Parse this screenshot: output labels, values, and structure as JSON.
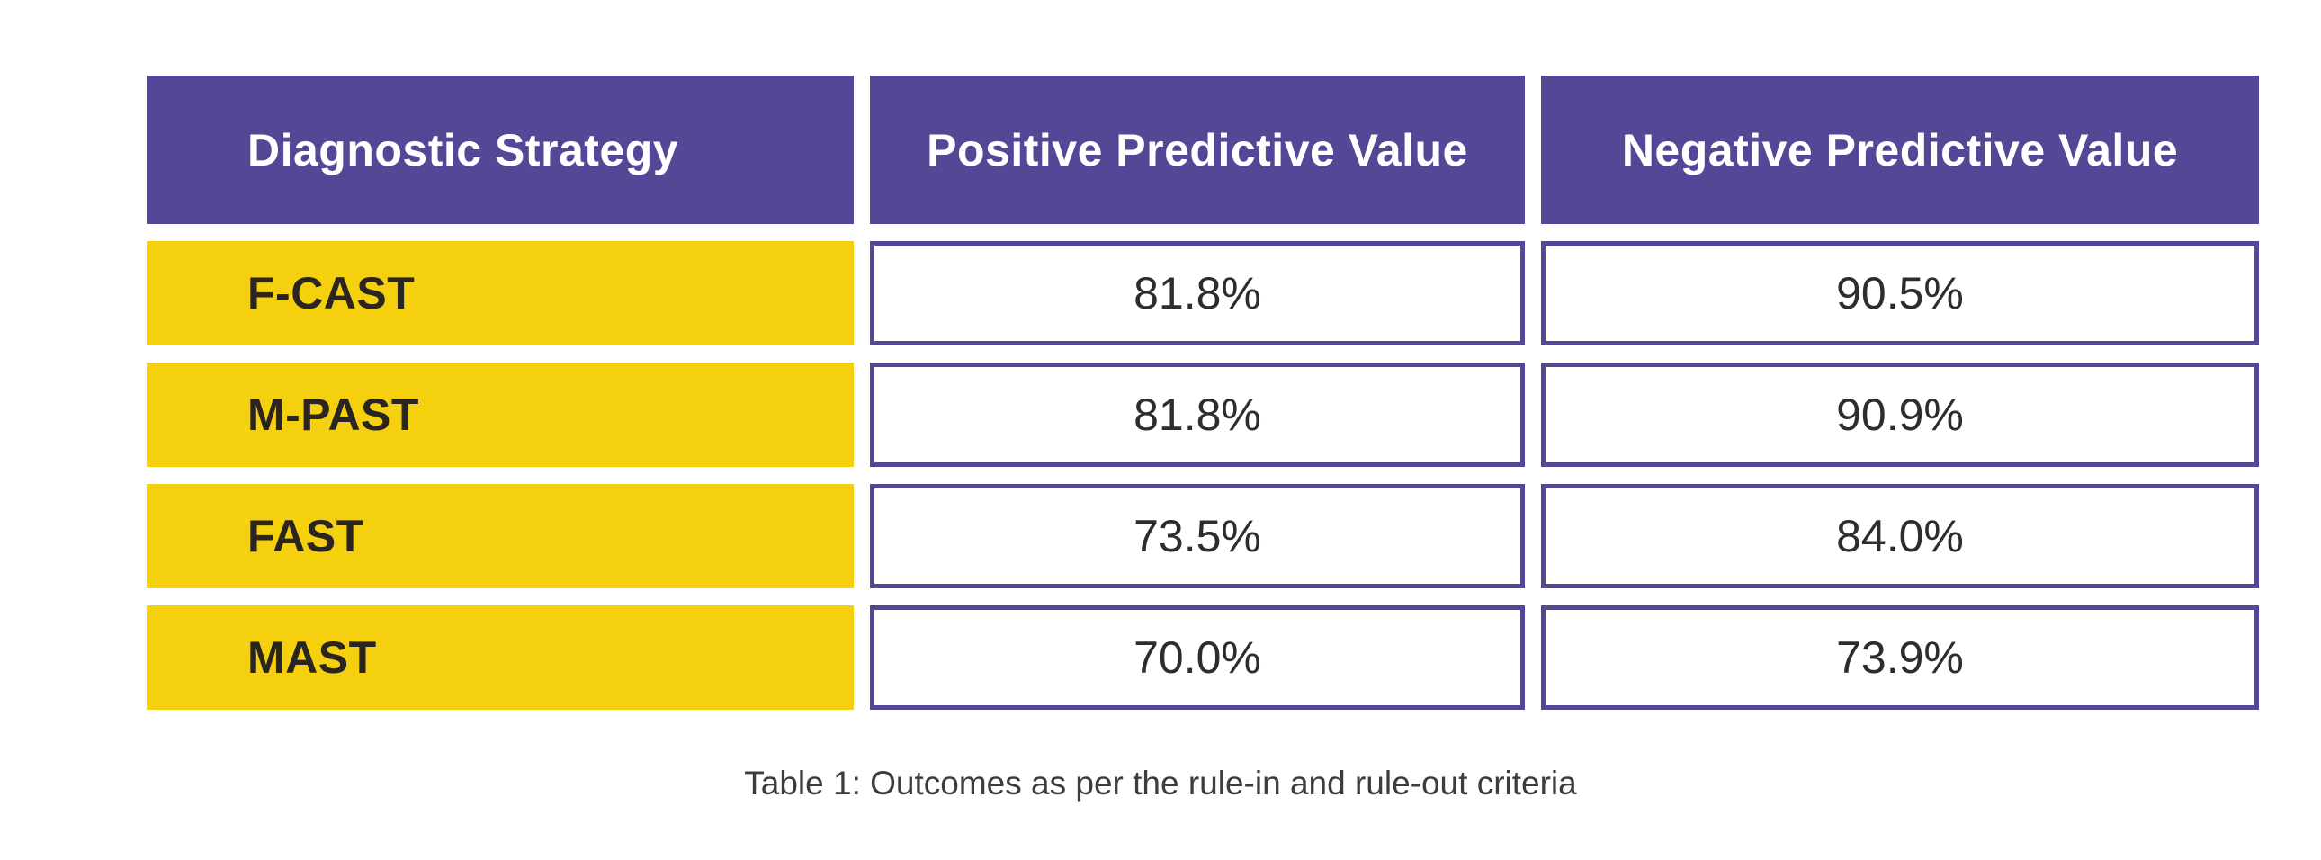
{
  "caption": "Table 1: Outcomes as per the rule-in and rule-out criteria",
  "table": {
    "columns": [
      {
        "label": "Diagnostic Strategy"
      },
      {
        "label": "Positive Predictive Value"
      },
      {
        "label": "Negative Predictive Value"
      }
    ],
    "rows": [
      {
        "strategy": "F-CAST",
        "ppv": "81.8%",
        "npv": "90.5%"
      },
      {
        "strategy": "M-PAST",
        "ppv": "81.8%",
        "npv": "90.9%"
      },
      {
        "strategy": "FAST",
        "ppv": "73.5%",
        "npv": "84.0%"
      },
      {
        "strategy": "MAST",
        "ppv": "70.0%",
        "npv": "73.9%"
      }
    ]
  },
  "colors": {
    "purple": "#564696",
    "yellow": "#F5D00F",
    "label_text": "#2A2521",
    "value_text": "#2D2D2D",
    "caption_text": "#3C3C3C",
    "page_bg": "#FFFFFF"
  },
  "chart_data": {
    "type": "table",
    "title": "Table 1: Outcomes as per the rule-in and rule-out criteria",
    "columns": [
      "Diagnostic Strategy",
      "Positive Predictive Value",
      "Negative Predictive Value"
    ],
    "rows": [
      [
        "F-CAST",
        "81.8%",
        "90.5%"
      ],
      [
        "M-PAST",
        "81.8%",
        "90.9%"
      ],
      [
        "FAST",
        "73.5%",
        "84.0%"
      ],
      [
        "MAST",
        "70.0%",
        "73.9%"
      ]
    ],
    "values_percent": {
      "F-CAST": {
        "positive_predictive_value": 81.8,
        "negative_predictive_value": 90.5
      },
      "M-PAST": {
        "positive_predictive_value": 81.8,
        "negative_predictive_value": 90.9
      },
      "FAST": {
        "positive_predictive_value": 73.5,
        "negative_predictive_value": 84.0
      },
      "MAST": {
        "positive_predictive_value": 70.0,
        "negative_predictive_value": 73.9
      }
    },
    "layout_hints": {
      "header_background": "#564696",
      "row_label_background": "#F5D00F",
      "value_cell_border": "#564696",
      "caption_position": "bottom-center"
    }
  }
}
